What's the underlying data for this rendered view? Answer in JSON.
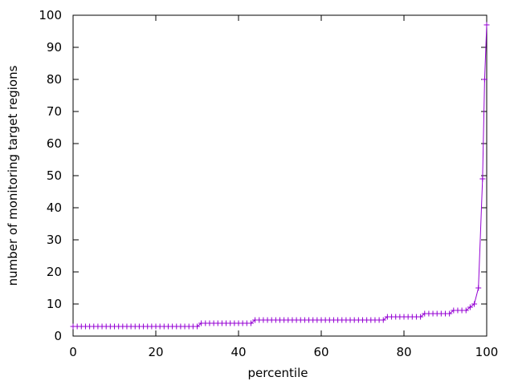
{
  "chart_data": {
    "type": "line",
    "title": "",
    "xlabel": "percentile",
    "ylabel": "number of monitoring target regions",
    "xlim": [
      0,
      100
    ],
    "ylim": [
      0,
      100
    ],
    "xticks": [
      0,
      20,
      40,
      60,
      80,
      100
    ],
    "yticks": [
      0,
      10,
      20,
      30,
      40,
      50,
      60,
      70,
      80,
      90,
      100
    ],
    "grid": false,
    "legend": "none",
    "marker": "plus",
    "color": "#9400d3",
    "series": [
      {
        "x": [
          0,
          1,
          2,
          3,
          4,
          5,
          6,
          7,
          8,
          9,
          10,
          11,
          12,
          13,
          14,
          15,
          16,
          17,
          18,
          19,
          20,
          21,
          22,
          23,
          24,
          25,
          26,
          27,
          28,
          29,
          30,
          31,
          32,
          33,
          34,
          35,
          36,
          37,
          38,
          39,
          40,
          41,
          42,
          43,
          44,
          45,
          46,
          47,
          48,
          49,
          50,
          51,
          52,
          53,
          54,
          55,
          56,
          57,
          58,
          59,
          60,
          61,
          62,
          63,
          64,
          65,
          66,
          67,
          68,
          69,
          70,
          71,
          72,
          73,
          74,
          75,
          76,
          77,
          78,
          79,
          80,
          81,
          82,
          83,
          84,
          85,
          86,
          87,
          88,
          89,
          90,
          91,
          92,
          93,
          94,
          95,
          96,
          97,
          98,
          99,
          99.5,
          100
        ],
        "y": [
          3,
          3,
          3,
          3,
          3,
          3,
          3,
          3,
          3,
          3,
          3,
          3,
          3,
          3,
          3,
          3,
          3,
          3,
          3,
          3,
          3,
          3,
          3,
          3,
          3,
          3,
          3,
          3,
          3,
          3,
          3,
          4,
          4,
          4,
          4,
          4,
          4,
          4,
          4,
          4,
          4,
          4,
          4,
          4,
          5,
          5,
          5,
          5,
          5,
          5,
          5,
          5,
          5,
          5,
          5,
          5,
          5,
          5,
          5,
          5,
          5,
          5,
          5,
          5,
          5,
          5,
          5,
          5,
          5,
          5,
          5,
          5,
          5,
          5,
          5,
          5,
          6,
          6,
          6,
          6,
          6,
          6,
          6,
          6,
          6,
          7,
          7,
          7,
          7,
          7,
          7,
          7,
          8,
          8,
          8,
          8,
          9,
          10,
          15,
          49,
          80,
          97
        ]
      }
    ]
  }
}
